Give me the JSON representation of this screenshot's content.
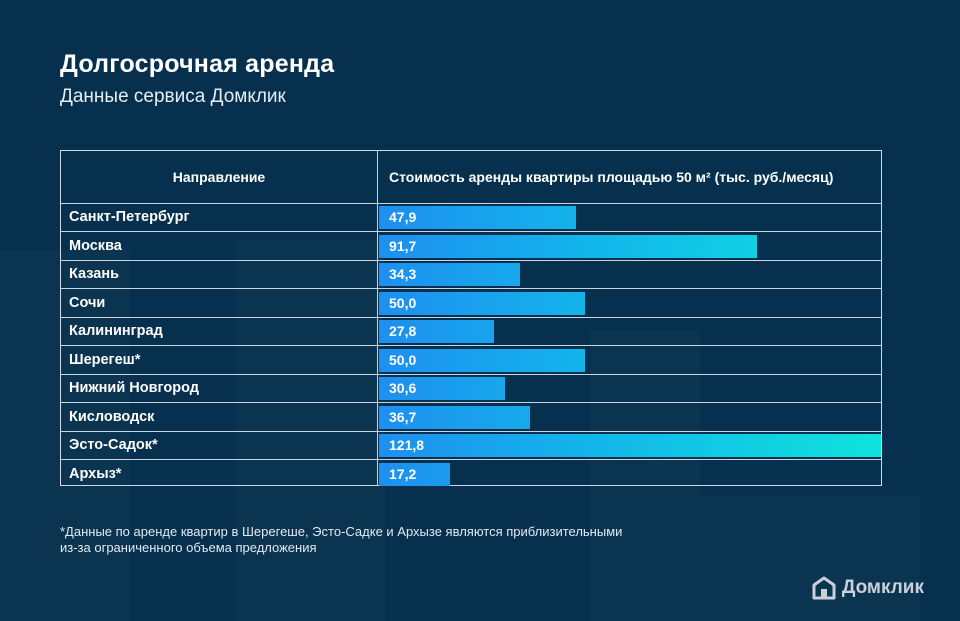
{
  "title": "Долгосрочная аренда",
  "subtitle": "Данные сервиса Домклик",
  "table": {
    "header_left": "Направление",
    "header_right": "Стоимость аренды квартиры площадью 50 м² (тыс. руб./месяц)"
  },
  "chart_data": {
    "type": "bar",
    "orientation": "horizontal",
    "title": "Долгосрочная аренда",
    "subtitle": "Данные сервиса Домклик",
    "xlabel": "Стоимость аренды квартиры площадью 50 м² (тыс. руб./месяц)",
    "ylabel": "Направление",
    "categories": [
      "Санкт-Петербург",
      "Москва",
      "Казань",
      "Сочи",
      "Калининград",
      "Шерегеш*",
      "Нижний Новгород",
      "Кисловодск",
      "Эсто-Садок*",
      "Архыз*"
    ],
    "values": [
      47.9,
      91.7,
      34.3,
      50.0,
      27.8,
      50.0,
      30.6,
      36.7,
      121.8,
      17.2
    ],
    "value_labels": [
      "47,9",
      "91,7",
      "34,3",
      "50,0",
      "27,8",
      "50,0",
      "30,6",
      "36,7",
      "121,8",
      "17,2"
    ],
    "xlim": [
      0,
      121.8
    ],
    "colors": [
      "#1e8ff0",
      "#0fe3dc"
    ]
  },
  "footnote": {
    "line1": "*Данные по аренде квартир в Шерегеше, Эсто-Садке и Архызе являются приблизительными",
    "line2": "из-за ограниченного объема предложения"
  },
  "brand": {
    "name": "Домклик",
    "icon": "house-logo-icon"
  }
}
